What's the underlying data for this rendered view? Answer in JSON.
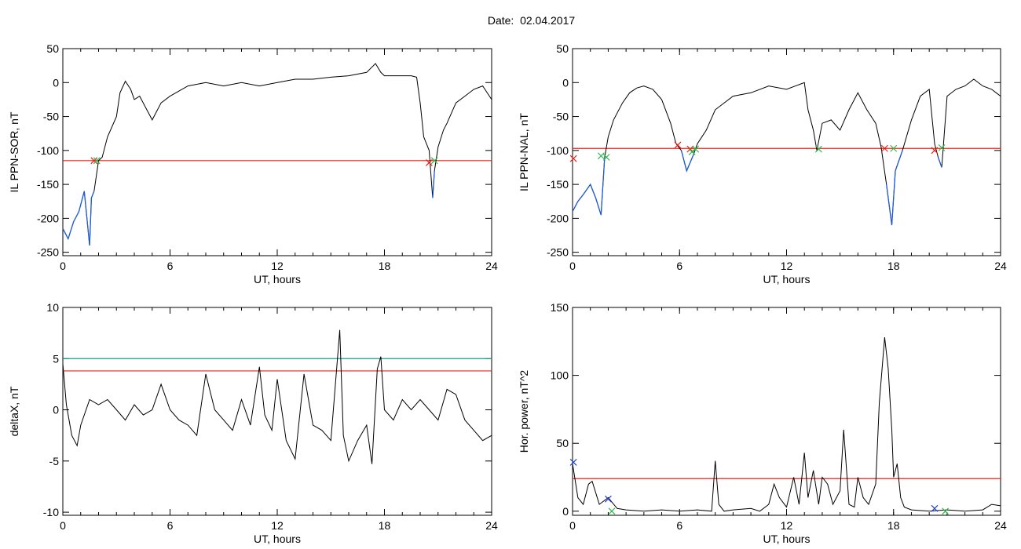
{
  "header": {
    "date_label": "Date:",
    "date_value": "02.04.2017"
  },
  "colors": {
    "trace": "#000000",
    "highlight": "#1f5bd6",
    "threshold_red": "#e8221b",
    "threshold_teal": "#1a9a8a",
    "marker_red": "#e8221b",
    "marker_green": "#2fb84a",
    "marker_blue": "#2040d0"
  },
  "chart_data": [
    {
      "type": "line",
      "ylabel": "IL PPN-SOR, nT",
      "xlabel": "UT, hours",
      "xlim": [
        0,
        24
      ],
      "ylim": [
        -255,
        50
      ],
      "xticks": [
        0,
        6,
        12,
        18,
        24
      ],
      "yticks": [
        50,
        0,
        -50,
        -100,
        -150,
        -200,
        -250
      ],
      "threshold": -115,
      "series": [
        {
          "x": [
            0,
            0.3,
            0.6,
            0.9,
            1.2,
            1.5,
            1.6,
            1.75,
            2.0,
            2.2,
            2.5,
            3.0,
            3.2,
            3.5,
            3.8,
            4.0,
            4.3,
            4.7,
            5.0,
            5.5,
            6,
            7,
            8,
            9,
            10,
            11,
            12,
            13,
            14,
            15,
            16,
            17,
            17.5,
            17.8,
            18,
            19,
            19.5,
            19.8,
            20.0,
            20.2,
            20.5,
            20.7,
            20.8,
            21.0,
            21.3,
            21.5,
            22,
            22.5,
            23,
            23.5,
            24
          ],
          "y": [
            -215,
            -230,
            -205,
            -190,
            -160,
            -240,
            -170,
            -160,
            -115,
            -110,
            -80,
            -50,
            -15,
            2,
            -10,
            -25,
            -20,
            -40,
            -55,
            -30,
            -20,
            -5,
            0,
            -5,
            0,
            -5,
            0,
            5,
            5,
            8,
            10,
            15,
            28,
            15,
            10,
            10,
            10,
            8,
            -30,
            -80,
            -100,
            -170,
            -130,
            -95,
            -70,
            -60,
            -30,
            -20,
            -10,
            -5,
            -25
          ]
        }
      ],
      "markers": [
        {
          "x": 1.75,
          "y": -115,
          "color": "red"
        },
        {
          "x": 1.9,
          "y": -115,
          "color": "green"
        },
        {
          "x": 20.5,
          "y": -118,
          "color": "red"
        },
        {
          "x": 20.8,
          "y": -115,
          "color": "green"
        }
      ]
    },
    {
      "type": "line",
      "ylabel": "IL PPN-NAL, nT",
      "xlabel": "UT, hours",
      "xlim": [
        0,
        24
      ],
      "ylim": [
        -255,
        50
      ],
      "xticks": [
        0,
        6,
        12,
        18,
        24
      ],
      "yticks": [
        50,
        0,
        -50,
        -100,
        -150,
        -200,
        -250
      ],
      "threshold": -97,
      "series": [
        {
          "x": [
            0,
            0.3,
            0.6,
            1.0,
            1.3,
            1.6,
            1.8,
            2.0,
            2.3,
            2.8,
            3.2,
            3.6,
            4.0,
            4.5,
            5.0,
            5.5,
            5.8,
            6.1,
            6.4,
            6.8,
            7.0,
            7.5,
            8,
            9,
            10,
            11,
            12,
            13,
            13.2,
            13.5,
            13.7,
            14,
            14.5,
            15,
            15.5,
            16,
            16.5,
            17,
            17.3,
            17.6,
            17.9,
            18.1,
            18.5,
            19,
            19.5,
            20,
            20.3,
            20.5,
            20.7,
            21,
            21.5,
            22,
            22.5,
            23,
            23.5,
            24
          ],
          "y": [
            -190,
            -175,
            -165,
            -150,
            -170,
            -195,
            -110,
            -80,
            -55,
            -30,
            -15,
            -8,
            -5,
            -10,
            -25,
            -60,
            -90,
            -100,
            -130,
            -105,
            -90,
            -70,
            -40,
            -20,
            -15,
            -5,
            -10,
            0,
            -40,
            -70,
            -100,
            -60,
            -55,
            -70,
            -40,
            -15,
            -40,
            -60,
            -95,
            -150,
            -210,
            -130,
            -100,
            -55,
            -20,
            -10,
            -90,
            -110,
            -125,
            -20,
            -10,
            -5,
            5,
            -5,
            -10,
            -20
          ]
        }
      ],
      "markers": [
        {
          "x": 0.05,
          "y": -112,
          "color": "red"
        },
        {
          "x": 1.6,
          "y": -108,
          "color": "green"
        },
        {
          "x": 1.9,
          "y": -110,
          "color": "green"
        },
        {
          "x": 5.9,
          "y": -92,
          "color": "red"
        },
        {
          "x": 6.6,
          "y": -98,
          "color": "red"
        },
        {
          "x": 6.7,
          "y": -102,
          "color": "green"
        },
        {
          "x": 6.9,
          "y": -98,
          "color": "green"
        },
        {
          "x": 13.8,
          "y": -98,
          "color": "green"
        },
        {
          "x": 17.5,
          "y": -97,
          "color": "red"
        },
        {
          "x": 18.0,
          "y": -97,
          "color": "green"
        },
        {
          "x": 20.3,
          "y": -100,
          "color": "red"
        },
        {
          "x": 20.7,
          "y": -96,
          "color": "green"
        }
      ]
    },
    {
      "type": "line",
      "ylabel": "deltaX, nT",
      "xlabel": "UT, hours",
      "xlim": [
        0,
        24
      ],
      "ylim": [
        -10.3,
        10
      ],
      "xticks": [
        0,
        6,
        12,
        18,
        24
      ],
      "yticks": [
        10,
        5,
        0,
        -5,
        -10
      ],
      "threshold_teal": 5,
      "threshold_red": 3.8,
      "series": [
        {
          "x": [
            0,
            0.2,
            0.5,
            0.8,
            1.0,
            1.5,
            2.0,
            2.5,
            3.0,
            3.5,
            4.0,
            4.5,
            5.0,
            5.5,
            6.0,
            6.5,
            7.0,
            7.5,
            8.0,
            8.5,
            9.0,
            9.5,
            10.0,
            10.5,
            11.0,
            11.3,
            11.7,
            12.0,
            12.5,
            13.0,
            13.5,
            14.0,
            14.5,
            15.0,
            15.3,
            15.5,
            15.7,
            16.0,
            16.5,
            17.0,
            17.3,
            17.6,
            17.8,
            18.0,
            18.5,
            19.0,
            19.5,
            20.0,
            20.5,
            21.0,
            21.5,
            22.0,
            22.5,
            23.0,
            23.5,
            24.0
          ],
          "y": [
            4.5,
            0.5,
            -2.5,
            -3.5,
            -1.5,
            1,
            0.5,
            1,
            0,
            -1,
            0.5,
            -0.5,
            0,
            2.5,
            0,
            -1,
            -1.5,
            -2.5,
            3.5,
            0,
            -1,
            -2,
            1,
            -1.5,
            4.2,
            -0.5,
            -2,
            3,
            -3,
            -4.8,
            3.5,
            -1.5,
            -2,
            -3,
            3.5,
            7.8,
            -2.5,
            -5,
            -3,
            -1.5,
            -5.3,
            4,
            5.2,
            0,
            -1,
            1,
            0,
            1,
            0,
            -1,
            2,
            1.5,
            -1,
            -2,
            -3,
            -2.5
          ]
        }
      ]
    },
    {
      "type": "line",
      "ylabel": "Hor. power, nT^2",
      "xlabel": "UT, hours",
      "xlim": [
        0,
        24
      ],
      "ylim": [
        -3,
        150
      ],
      "xticks": [
        0,
        6,
        12,
        18,
        24
      ],
      "yticks": [
        150,
        100,
        50,
        0
      ],
      "threshold": 24,
      "series": [
        {
          "x": [
            0,
            0.3,
            0.6,
            0.9,
            1.1,
            1.5,
            2.0,
            2.5,
            3,
            4,
            5,
            6,
            7,
            7.8,
            8.0,
            8.2,
            8.5,
            9,
            10,
            10.5,
            11,
            11.3,
            11.6,
            12,
            12.4,
            12.7,
            13.0,
            13.2,
            13.5,
            13.8,
            14.0,
            14.3,
            14.6,
            15.0,
            15.2,
            15.5,
            15.8,
            16.0,
            16.3,
            16.6,
            17.0,
            17.2,
            17.5,
            17.7,
            17.9,
            18.0,
            18.2,
            18.4,
            18.6,
            19,
            20,
            21,
            22,
            23,
            23.5,
            24
          ],
          "y": [
            35,
            10,
            5,
            20,
            22,
            5,
            10,
            2,
            1,
            0,
            1,
            0,
            1,
            0,
            37,
            5,
            0,
            1,
            2,
            0,
            5,
            20,
            10,
            3,
            25,
            5,
            43,
            10,
            30,
            5,
            25,
            20,
            5,
            15,
            60,
            5,
            3,
            25,
            10,
            5,
            20,
            80,
            128,
            105,
            60,
            25,
            35,
            10,
            3,
            1,
            0,
            1,
            0,
            1,
            5,
            4
          ]
        }
      ],
      "markers": [
        {
          "x": 0.05,
          "y": 36,
          "color": "blue"
        },
        {
          "x": 2.0,
          "y": 9,
          "color": "blue"
        },
        {
          "x": 2.2,
          "y": 0,
          "color": "green"
        },
        {
          "x": 20.3,
          "y": 2,
          "color": "blue"
        },
        {
          "x": 20.9,
          "y": 0,
          "color": "green"
        }
      ]
    }
  ]
}
